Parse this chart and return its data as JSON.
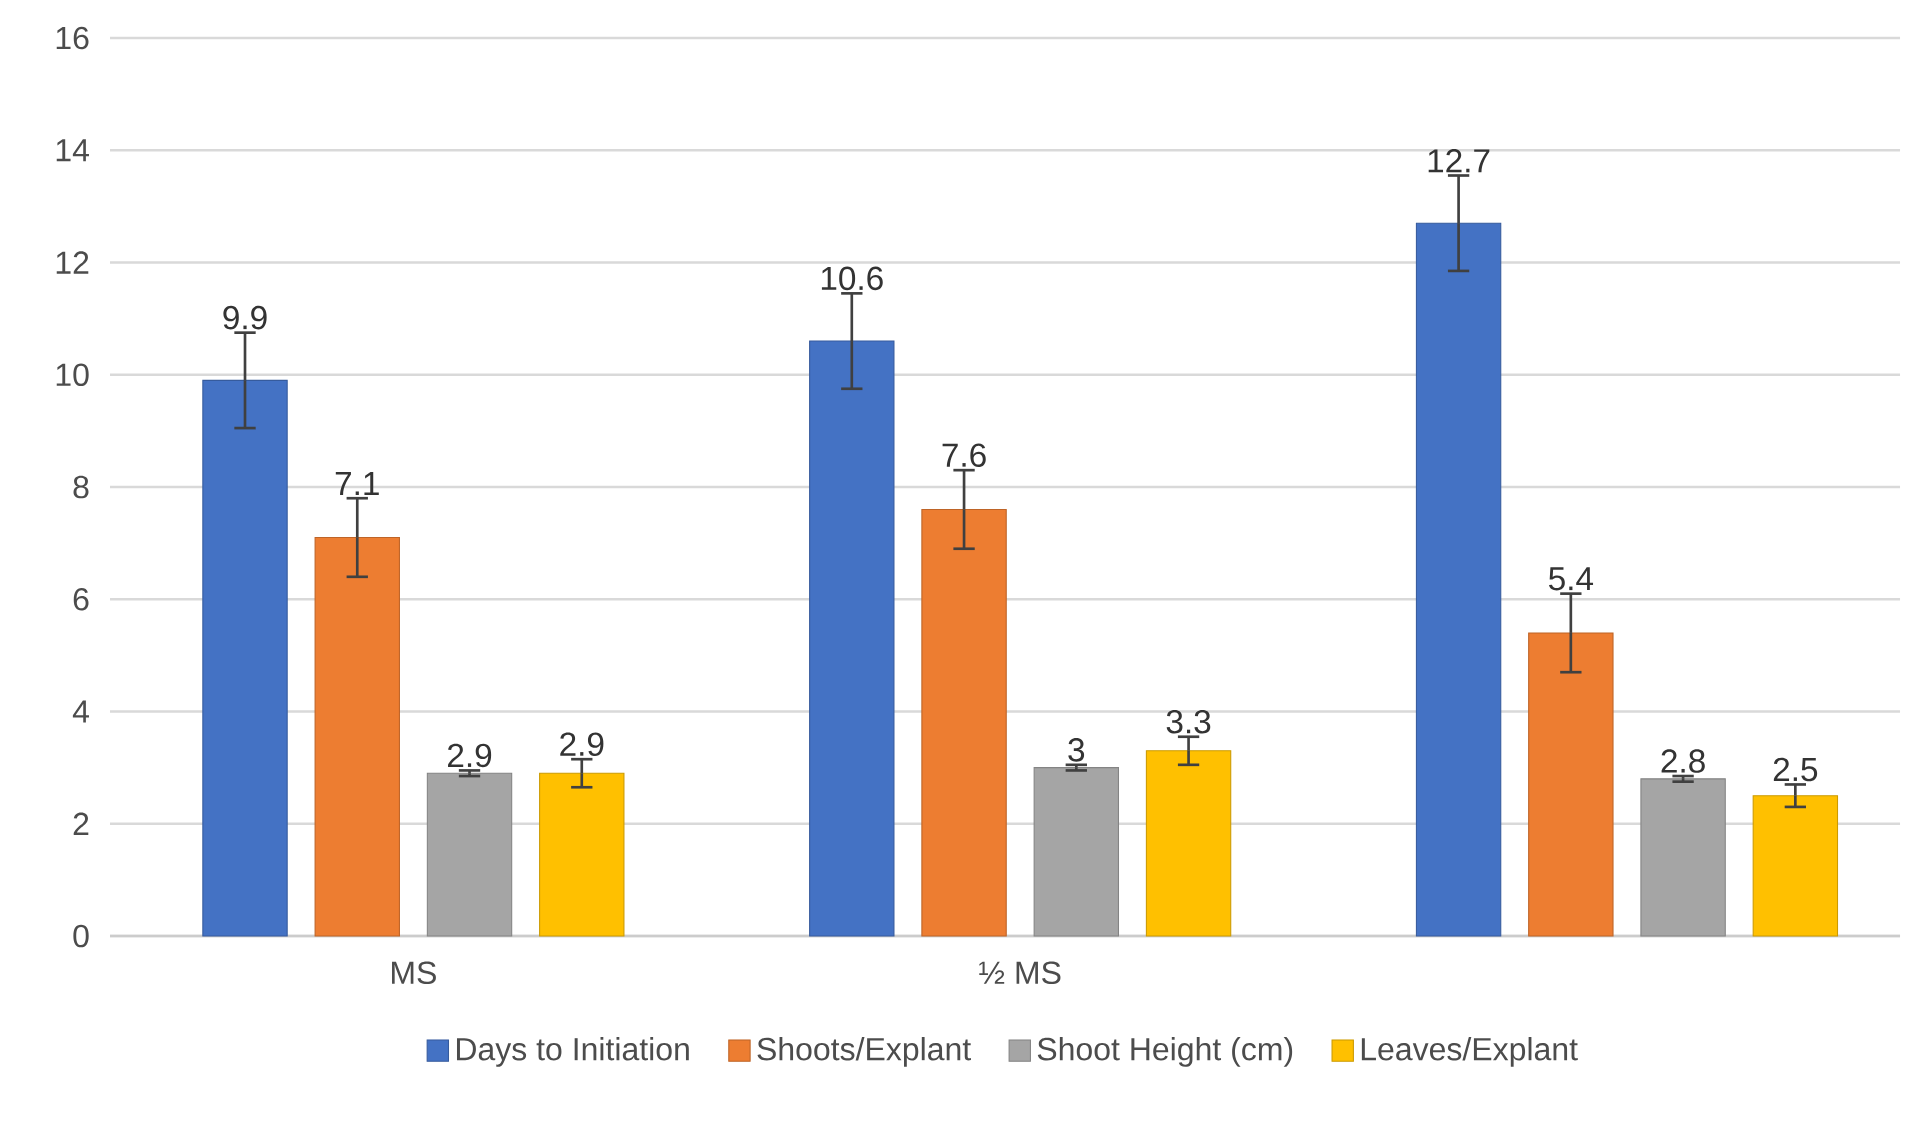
{
  "chart_data": {
    "type": "bar",
    "categories": [
      "MS",
      "½ MS",
      null
    ],
    "series": [
      {
        "name": "Days to Initiation",
        "color": "#4472c4",
        "values": [
          9.9,
          10.6,
          12.7
        ],
        "errors": [
          0.85,
          0.85,
          0.85
        ]
      },
      {
        "name": "Shoots/Explant",
        "color": "#ed7d31",
        "values": [
          7.1,
          7.6,
          5.4
        ],
        "errors": [
          0.7,
          0.7,
          0.7
        ]
      },
      {
        "name": "Shoot Height (cm)",
        "color": "#a5a5a5",
        "values": [
          2.9,
          3,
          2.8
        ],
        "errors": [
          0.05,
          0.05,
          0.05
        ]
      },
      {
        "name": "Leaves/Explant",
        "color": "#ffc000",
        "values": [
          2.9,
          3.3,
          2.5
        ],
        "errors": [
          0.25,
          0.25,
          0.2
        ]
      }
    ],
    "ylim": [
      0,
      16
    ],
    "yticks": [
      0,
      2,
      4,
      6,
      8,
      10,
      12,
      14,
      16
    ],
    "grid": "y",
    "legend": "bottom",
    "data_labels": true
  }
}
